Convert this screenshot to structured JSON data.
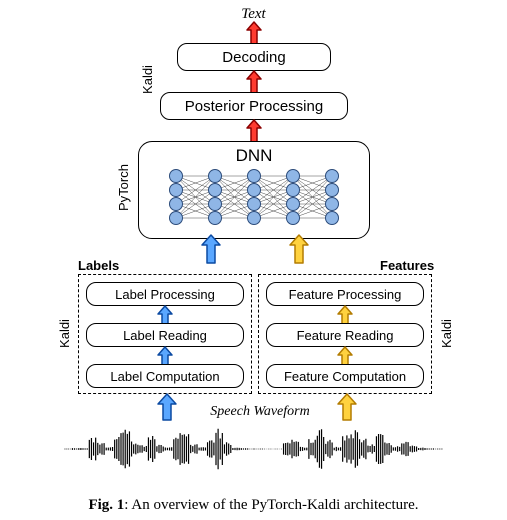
{
  "caption": {
    "label_bold": "Fig. 1",
    "text": ": An overview of the PyTorch-Kaldi architecture."
  },
  "top_label": "Text",
  "speech_label": "Speech Waveform",
  "decoding": {
    "label": "Decoding"
  },
  "posterior": {
    "label": "Posterior Processing"
  },
  "dnn": {
    "label": "DNN"
  },
  "labels_group": {
    "title": "Labels",
    "box1": "Label Processing",
    "box2": "Label Reading",
    "box3": "Label Computation"
  },
  "features_group": {
    "title": "Features",
    "box1": "Feature Processing",
    "box2": "Feature Reading",
    "box3": "Feature Computation"
  },
  "side_labels": {
    "kaldi": "Kaldi",
    "pytorch": "PyTorch"
  },
  "colors": {
    "red_fill": "#ff3b30",
    "red_stroke": "#8b0000",
    "blue_fill": "#5aa7ff",
    "blue_stroke": "#0b4aa2",
    "yellow_fill": "#ffd23f",
    "yellow_stroke": "#b37c00",
    "node_fill": "#8fb6e6",
    "node_stroke": "#2b4b7a",
    "edge": "#333333",
    "wave": "#000000"
  },
  "arrow_stroke_w": 1.5,
  "dnn_net": {
    "layers": 5,
    "nodes": 4
  }
}
